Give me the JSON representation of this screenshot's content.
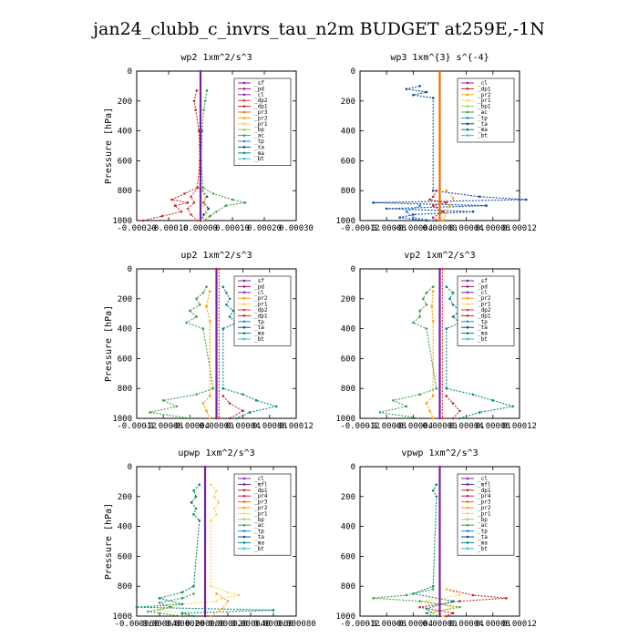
{
  "page_title": "jan24_clubb_c_invrs_tau_n2m  BUDGET at259E,-1N",
  "palette": {
    "sf": "#7b1fa2",
    "pd": "#a01e6a",
    "cl": "#8e24aa",
    "dp2": "#e53935",
    "dp1": "#c62828",
    "pr3": "#ef6c00",
    "pr2": "#ffa000",
    "pr1": "#ffd54f",
    "bp": "#9ccc65",
    "ac": "#43a047",
    "tp": "#1e88e5",
    "ta": "#0d47a1",
    "ma": "#00897b",
    "bt": "#26c6da",
    "mfl": "#6a1b9a",
    "pr4": "#d81b60"
  },
  "chart_data": [
    {
      "type": "line",
      "title": "wp2   1xm^2/s^3",
      "ylabel": "Pressure [hPa]",
      "ylim": [
        1000,
        0
      ],
      "yticks": [
        0,
        200,
        400,
        600,
        800,
        1000
      ],
      "xlim": [
        -0.0002,
        0.0003
      ],
      "xticks": [
        -0.0002,
        -0.0001,
        0.0,
        0.0001,
        0.0002,
        0.0003
      ],
      "xtick_labels": [
        "-0.00020",
        "-0.00010",
        "0.00000",
        "0.00010",
        "0.00020",
        "0.00030"
      ],
      "legend": [
        "_sf",
        "_pd",
        "_cl",
        "_dp2",
        "_dp1",
        "_pr3",
        "_pr2",
        "_pr1",
        "_bp",
        "_ac",
        "_tp",
        "_ta",
        "_ma",
        "_bt"
      ],
      "legend_keys": [
        "sf",
        "pd",
        "cl",
        "dp2",
        "dp1",
        "pr3",
        "pr2",
        "pr1",
        "bp",
        "ac",
        "tp",
        "ta",
        "ma",
        "bt"
      ],
      "series": [
        {
          "key": "ac",
          "y": [
            130,
            200,
            260,
            400,
            600,
            780,
            820,
            860,
            880,
            900,
            940,
            970,
            1000
          ],
          "x": [
            2e-05,
            1.5e-05,
            1e-05,
            5e-06,
            2e-06,
            8e-06,
            4e-05,
            0.0001,
            0.00014,
            8e-05,
            5e-05,
            3e-05,
            1e-05
          ]
        },
        {
          "key": "dp1",
          "y": [
            130,
            200,
            260,
            400,
            600,
            780,
            820,
            860,
            880,
            900,
            940,
            970,
            1000
          ],
          "x": [
            -1.2e-05,
            -2e-05,
            -1.5e-05,
            -5e-06,
            -2e-06,
            -1e-05,
            -5e-05,
            -9e-05,
            -4e-05,
            -8e-05,
            -6e-05,
            -0.00012,
            -0.00018
          ]
        },
        {
          "key": "dp2",
          "y": [
            780,
            840,
            880,
            920,
            960,
            1000
          ],
          "x": [
            -8e-06,
            -3e-05,
            -2e-05,
            -4e-05,
            -3e-05,
            -1e-05
          ]
        },
        {
          "key": "ta",
          "y": [
            800,
            840,
            880,
            920,
            960,
            1000
          ],
          "x": [
            5e-06,
            2e-05,
            1e-05,
            2.5e-05,
            1e-05,
            3e-06
          ]
        },
        {
          "key": "pr1",
          "y": [
            800,
            850,
            900,
            950,
            1000
          ],
          "x": [
            3e-06,
            1.5e-05,
            1e-05,
            2e-05,
            5e-06
          ]
        },
        {
          "key": "sf",
          "y": [
            0,
            1000
          ],
          "x": [
            0.0,
            0.0
          ]
        }
      ]
    },
    {
      "type": "line",
      "title": "wp3   1xm^{3} s^{-4}",
      "ylabel": "",
      "ylim": [
        1000,
        0
      ],
      "yticks": [
        0,
        200,
        400,
        600,
        800,
        1000
      ],
      "xlim": [
        -0.00012,
        0.00012
      ],
      "xticks": [
        -0.00012,
        -8e-05,
        -4e-05,
        0.0,
        4e-05,
        8e-05,
        0.00012
      ],
      "xtick_labels": [
        "-0.00012",
        "-0.00008",
        "-0.00004",
        "0.00000",
        "0.00004",
        "0.00008",
        "0.00012"
      ],
      "legend": [
        "_cl",
        "_dp1",
        "_pr2",
        "_pr1",
        "_bp1",
        "_ac",
        "_tp",
        "_ta",
        "_ma",
        "_bt"
      ],
      "legend_keys": [
        "cl",
        "dp1",
        "pr2",
        "pr1",
        "bp",
        "ac",
        "tp",
        "ta",
        "ma",
        "bt"
      ],
      "series": [
        {
          "key": "ta",
          "y": [
            100,
            120,
            140,
            160,
            180,
            800,
            840,
            860,
            880,
            900,
            920,
            940,
            960,
            980,
            1000
          ],
          "x": [
            -3e-05,
            -5e-05,
            -2e-05,
            -4e-05,
            -1e-05,
            -1e-05,
            6e-05,
            0.00013,
            -0.0001,
            7e-05,
            -8e-05,
            5e-05,
            -4e-05,
            -6e-05,
            -2e-05
          ]
        },
        {
          "key": "dp1",
          "y": [
            800,
            840,
            860,
            880,
            900,
            940,
            980,
            1000
          ],
          "x": [
            -5e-06,
            -1e-05,
            -1.5e-05,
            1e-05,
            -1e-05,
            5e-06,
            -1e-05,
            -5e-06
          ]
        },
        {
          "key": "pr2",
          "y": [
            800,
            850,
            900,
            950,
            1000
          ],
          "x": [
            1e-05,
            2e-05,
            1.5e-05,
            1e-05,
            5e-06
          ]
        },
        {
          "key": "tp",
          "y": [
            900,
            940,
            980,
            1000
          ],
          "x": [
            -3e-05,
            -5e-05,
            -4e-05,
            -1e-05
          ]
        },
        {
          "key": "pr3",
          "y": [
            0,
            1000
          ],
          "x": [
            0.0,
            0.0
          ]
        }
      ]
    },
    {
      "type": "line",
      "title": "up2   1xm^2/s^3",
      "ylabel": "Pressure [hPa]",
      "ylim": [
        1000,
        0
      ],
      "yticks": [
        0,
        200,
        400,
        600,
        800,
        1000
      ],
      "xlim": [
        -0.00012,
        0.00012
      ],
      "xticks": [
        -0.00012,
        -8e-05,
        -4e-05,
        0.0,
        4e-05,
        8e-05,
        0.00012
      ],
      "xtick_labels": [
        "-0.00012",
        "-0.00008",
        "-0.00004",
        "0.00000",
        "0.00004",
        "0.00008",
        "0.00012"
      ],
      "legend": [
        "_sf",
        "_pd",
        "_cl",
        "_pr2",
        "_pr1",
        "_dp2",
        "_dp1",
        "_tp",
        "_ta",
        "_ma",
        "_bt"
      ],
      "legend_keys": [
        "sf",
        "pd",
        "cl",
        "pr2",
        "pr1",
        "dp2",
        "dp1",
        "tp",
        "ta",
        "ma",
        "bt"
      ],
      "series": [
        {
          "key": "ac",
          "y": [
            120,
            160,
            200,
            240,
            280,
            320,
            360,
            400,
            800,
            840,
            880,
            920,
            960,
            1000
          ],
          "x": [
            -1.5e-05,
            -2e-05,
            -3e-05,
            -2.5e-05,
            -4e-05,
            -3e-05,
            -4.5e-05,
            -2e-05,
            -5e-06,
            -3e-05,
            -8e-05,
            -6e-05,
            -0.0001,
            -4e-05
          ]
        },
        {
          "key": "ma",
          "y": [
            120,
            160,
            200,
            240,
            280,
            320,
            360,
            400,
            800,
            840,
            880,
            920,
            960,
            1000
          ],
          "x": [
            1e-05,
            1.5e-05,
            2e-05,
            1.5e-05,
            2.5e-05,
            2e-05,
            3e-05,
            1e-05,
            1e-05,
            4e-05,
            6e-05,
            9e-05,
            5e-05,
            3e-05
          ]
        },
        {
          "key": "pr2",
          "y": [
            150,
            250,
            350,
            850,
            900,
            950,
            1000
          ],
          "x": [
            -1e-05,
            -1.5e-05,
            -1e-05,
            -1e-05,
            -2e-05,
            -1.5e-05,
            -1e-05
          ]
        },
        {
          "key": "dp1",
          "y": [
            850,
            900,
            950,
            1000
          ],
          "x": [
            1e-05,
            2e-05,
            4e-05,
            2e-05
          ]
        },
        {
          "key": "sf",
          "y": [
            0,
            1000
          ],
          "x": [
            0.0,
            0.0
          ]
        },
        {
          "key": "dp2",
          "y": [
            0,
            1000
          ],
          "x": [
            4e-06,
            4e-06
          ]
        }
      ]
    },
    {
      "type": "line",
      "title": "vp2   1xm^2/s^3",
      "ylabel": "",
      "ylim": [
        1000,
        0
      ],
      "yticks": [
        0,
        200,
        400,
        600,
        800,
        1000
      ],
      "xlim": [
        -0.00012,
        0.00012
      ],
      "xticks": [
        -0.00012,
        -8e-05,
        -4e-05,
        0.0,
        4e-05,
        8e-05,
        0.00012
      ],
      "xtick_labels": [
        "-0.00012",
        "-0.00008",
        "-0.00004",
        "0.00000",
        "0.00004",
        "0.00008",
        "0.00012"
      ],
      "legend": [
        "_sf",
        "_pd",
        "_cl",
        "_pr2",
        "_pr1",
        "_dp2",
        "_dp1",
        "_tp",
        "_ta",
        "_ma",
        "_bt"
      ],
      "legend_keys": [
        "sf",
        "pd",
        "cl",
        "pr2",
        "pr1",
        "dp2",
        "dp1",
        "tp",
        "ta",
        "ma",
        "bt"
      ],
      "series": [
        {
          "key": "ac",
          "y": [
            120,
            160,
            200,
            240,
            280,
            320,
            360,
            400,
            800,
            840,
            880,
            920,
            960,
            1000
          ],
          "x": [
            -1e-05,
            -2e-05,
            -2.5e-05,
            -2e-05,
            -3e-05,
            -3e-05,
            -4e-05,
            -2e-05,
            -5e-06,
            -3e-05,
            -7e-05,
            -5e-05,
            -9e-05,
            -3e-05
          ]
        },
        {
          "key": "ma",
          "y": [
            120,
            160,
            200,
            240,
            280,
            320,
            360,
            400,
            800,
            840,
            880,
            920,
            960,
            1000
          ],
          "x": [
            1e-05,
            2e-05,
            1.5e-05,
            2e-05,
            3e-05,
            2e-05,
            3e-05,
            1e-05,
            1e-05,
            5e-05,
            8e-05,
            0.00011,
            6e-05,
            3e-05
          ]
        },
        {
          "key": "pr2",
          "y": [
            150,
            250,
            350,
            850,
            900,
            950,
            1000
          ],
          "x": [
            -1e-05,
            -1.2e-05,
            -1e-05,
            -1e-05,
            -2e-05,
            -1.5e-05,
            -1e-05
          ]
        },
        {
          "key": "dp1",
          "y": [
            850,
            900,
            950,
            1000
          ],
          "x": [
            1e-05,
            2e-05,
            3e-05,
            2e-05
          ]
        },
        {
          "key": "sf",
          "y": [
            0,
            1000
          ],
          "x": [
            0.0,
            0.0
          ]
        },
        {
          "key": "dp2",
          "y": [
            0,
            1000
          ],
          "x": [
            4e-06,
            4e-06
          ]
        }
      ]
    },
    {
      "type": "line",
      "title": "upwp   1xm^2/s^3",
      "ylabel": "Pressure [hPa]",
      "ylim": [
        1000,
        0
      ],
      "yticks": [
        0,
        200,
        400,
        600,
        800,
        1000
      ],
      "xlim": [
        -6e-05,
        8e-05
      ],
      "xticks": [
        -6e-05,
        -4e-05,
        -2e-05,
        0.0,
        2e-05,
        4e-05,
        6e-05,
        8e-05
      ],
      "xtick_labels": [
        "-0.000060",
        "-0.000040",
        "-0.000020",
        "0.000000",
        "0.000020",
        "0.000040",
        "0.000060",
        "0.000080"
      ],
      "legend": [
        "_cl",
        "_mfl",
        "_dp1",
        "_pr4",
        "_pr3",
        "_pr2",
        "_pr1",
        "_bp",
        "_ac",
        "_tp",
        "_ta",
        "_ma",
        "_bt"
      ],
      "legend_keys": [
        "cl",
        "mfl",
        "dp1",
        "pr4",
        "pr3",
        "pr2",
        "pr1",
        "bp",
        "ac",
        "tp",
        "ta",
        "ma",
        "bt"
      ],
      "series": [
        {
          "key": "pr1",
          "y": [
            120,
            160,
            200,
            240,
            280,
            320,
            360,
            800,
            840,
            860,
            880,
            900,
            920,
            940,
            960,
            980,
            1000
          ],
          "x": [
            5e-06,
            1e-05,
            8e-06,
            1.2e-05,
            8e-06,
            1e-05,
            5e-06,
            5e-06,
            2e-05,
            3e-05,
            1.5e-05,
            1e-05,
            -2e-05,
            -3e-05,
            -4e-05,
            -2e-05,
            -1e-05
          ]
        },
        {
          "key": "ma",
          "y": [
            120,
            160,
            200,
            240,
            280,
            320,
            360,
            800,
            840,
            880,
            920,
            940,
            960,
            980,
            1000
          ],
          "x": [
            -5e-06,
            -1e-05,
            -8e-06,
            -1.2e-05,
            -8e-06,
            -1e-05,
            -5e-06,
            -1e-05,
            -2e-05,
            -4e-05,
            -2e-05,
            -6e-05,
            6e-05,
            -2e-05,
            -1e-05
          ]
        },
        {
          "key": "ac",
          "y": [
            850,
            880,
            910,
            940,
            970,
            1000
          ],
          "x": [
            -1e-05,
            -2e-05,
            -4e-05,
            -3e-05,
            -5e-05,
            -2e-05
          ]
        },
        {
          "key": "pr2",
          "y": [
            850,
            900,
            950,
            1000
          ],
          "x": [
            1e-05,
            2e-05,
            1.5e-05,
            5e-06
          ]
        },
        {
          "key": "sf",
          "y": [
            0,
            1000
          ],
          "x": [
            0.0,
            0.0
          ]
        }
      ]
    },
    {
      "type": "line",
      "title": "vpwp   1xm^2/s^3",
      "ylabel": "",
      "ylim": [
        1000,
        0
      ],
      "yticks": [
        0,
        200,
        400,
        600,
        800,
        1000
      ],
      "xlim": [
        -0.00012,
        0.00012
      ],
      "xticks": [
        -0.00012,
        -8e-05,
        -4e-05,
        0.0,
        4e-05,
        8e-05,
        0.00012
      ],
      "xtick_labels": [
        "-0.00012",
        "-0.00008",
        "-0.00004",
        "0.00000",
        "0.00004",
        "0.00008",
        "0.00012"
      ],
      "legend": [
        "_cl",
        "_mfl",
        "_dp1",
        "_pr4",
        "_pr3",
        "_pr2",
        "_pr1",
        "_bp",
        "_ac",
        "_tp",
        "_ta",
        "_ma",
        "_bt"
      ],
      "legend_keys": [
        "cl",
        "mfl",
        "dp1",
        "pr4",
        "pr3",
        "pr2",
        "pr1",
        "bp",
        "ac",
        "tp",
        "ta",
        "ma",
        "bt"
      ],
      "series": [
        {
          "key": "ac",
          "y": [
            820,
            860,
            880,
            900,
            940,
            980,
            1000
          ],
          "x": [
            -1e-05,
            -5e-05,
            -0.0001,
            -3e-05,
            3e-05,
            -2e-05,
            -1e-05
          ]
        },
        {
          "key": "dp1",
          "y": [
            820,
            860,
            880,
            900,
            940,
            980,
            1000
          ],
          "x": [
            1e-05,
            5e-05,
            0.0001,
            3e-05,
            -3e-05,
            2e-05,
            1e-05
          ]
        },
        {
          "key": "ma",
          "y": [
            120,
            160,
            200,
            800,
            850,
            900,
            950,
            1000
          ],
          "x": [
            -5e-06,
            -1e-05,
            -5e-06,
            -1e-05,
            -4e-05,
            2e-05,
            -2e-05,
            -5e-06
          ]
        },
        {
          "key": "pr1",
          "y": [
            820,
            860,
            900,
            940,
            980,
            1000
          ],
          "x": [
            1e-05,
            3e-05,
            -2e-05,
            2e-05,
            -1e-05,
            5e-06
          ]
        },
        {
          "key": "sf",
          "y": [
            0,
            1000
          ],
          "x": [
            0.0,
            0.0
          ]
        }
      ]
    }
  ]
}
